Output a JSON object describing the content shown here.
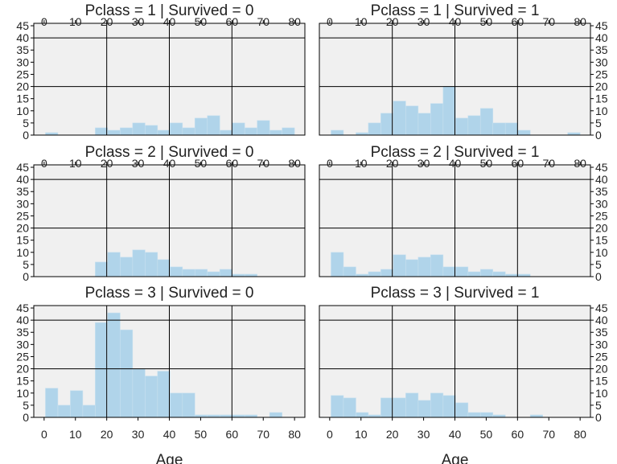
{
  "chart_data": [
    {
      "type": "histogram",
      "title": "Pclass = 1 | Survived = 0",
      "color": "#b0d4ea",
      "xlim": [
        -3.3,
        83.3
      ],
      "ylim": [
        0,
        46
      ],
      "xticks": [
        0,
        10,
        20,
        30,
        40,
        50,
        60,
        70,
        80
      ],
      "yticks": [
        0,
        5,
        10,
        15,
        20,
        25,
        30,
        35,
        40,
        45
      ],
      "xgrid": [
        20,
        40,
        60
      ],
      "ygrid": [
        20,
        40
      ],
      "xaxis_side": "top",
      "yaxis_side": "left",
      "bins": [
        0.42,
        4.4,
        8.38,
        12.35,
        16.33,
        20.31,
        24.29,
        28.27,
        32.25,
        36.23,
        40.21,
        44.19,
        48.16,
        52.14,
        56.12,
        60.1,
        64.08,
        68.06,
        72.04,
        76.02,
        80.0
      ],
      "values": [
        1,
        0,
        0,
        0,
        3,
        2,
        3,
        5,
        4,
        2,
        5,
        3,
        7,
        8,
        2,
        5,
        3,
        6,
        2,
        3
      ]
    },
    {
      "type": "histogram",
      "title": "Pclass = 1 | Survived = 1",
      "color": "#b0d4ea",
      "xlim": [
        -3.3,
        83.3
      ],
      "ylim": [
        0,
        46
      ],
      "xticks": [
        0,
        10,
        20,
        30,
        40,
        50,
        60,
        70,
        80
      ],
      "yticks": [
        0,
        5,
        10,
        15,
        20,
        25,
        30,
        35,
        40,
        45
      ],
      "xgrid": [
        20,
        40,
        60
      ],
      "ygrid": [
        20,
        40
      ],
      "xaxis_side": "top",
      "yaxis_side": "right",
      "bins": [
        0.42,
        4.4,
        8.38,
        12.35,
        16.33,
        20.31,
        24.29,
        28.27,
        32.25,
        36.23,
        40.21,
        44.19,
        48.16,
        52.14,
        56.12,
        60.1,
        64.08,
        68.06,
        72.04,
        76.02,
        80.0
      ],
      "values": [
        2,
        0,
        1,
        5,
        9,
        14,
        12,
        9,
        13,
        20,
        7,
        8,
        11,
        5,
        5,
        2,
        0,
        0,
        0,
        1
      ]
    },
    {
      "type": "histogram",
      "title": "Pclass = 2 | Survived = 0",
      "color": "#b0d4ea",
      "xlim": [
        -3.3,
        83.3
      ],
      "ylim": [
        0,
        46
      ],
      "xticks": [
        0,
        10,
        20,
        30,
        40,
        50,
        60,
        70,
        80
      ],
      "yticks": [
        0,
        5,
        10,
        15,
        20,
        25,
        30,
        35,
        40,
        45
      ],
      "xgrid": [
        20,
        40,
        60
      ],
      "ygrid": [
        20,
        40
      ],
      "xaxis_side": "top",
      "yaxis_side": "left",
      "bins": [
        0.42,
        4.4,
        8.38,
        12.35,
        16.33,
        20.31,
        24.29,
        28.27,
        32.25,
        36.23,
        40.21,
        44.19,
        48.16,
        52.14,
        56.12,
        60.1,
        64.08,
        68.06,
        72.04,
        76.02,
        80.0
      ],
      "values": [
        0,
        0,
        0,
        0,
        6,
        10,
        8,
        11,
        10,
        7,
        4,
        3,
        3,
        2,
        3,
        1,
        1,
        0,
        0,
        0
      ]
    },
    {
      "type": "histogram",
      "title": "Pclass = 2 | Survived = 1",
      "color": "#b0d4ea",
      "xlim": [
        -3.3,
        83.3
      ],
      "ylim": [
        0,
        46
      ],
      "xticks": [
        0,
        10,
        20,
        30,
        40,
        50,
        60,
        70,
        80
      ],
      "yticks": [
        0,
        5,
        10,
        15,
        20,
        25,
        30,
        35,
        40,
        45
      ],
      "xgrid": [
        20,
        40,
        60
      ],
      "ygrid": [
        20,
        40
      ],
      "xaxis_side": "top",
      "yaxis_side": "right",
      "bins": [
        0.42,
        4.4,
        8.38,
        12.35,
        16.33,
        20.31,
        24.29,
        28.27,
        32.25,
        36.23,
        40.21,
        44.19,
        48.16,
        52.14,
        56.12,
        60.1,
        64.08,
        68.06,
        72.04,
        76.02,
        80.0
      ],
      "values": [
        10,
        4,
        1,
        2,
        3,
        9,
        7,
        8,
        9,
        4,
        4,
        2,
        3,
        2,
        1,
        1,
        0,
        0,
        0,
        0
      ]
    },
    {
      "type": "histogram",
      "title": "Pclass = 3 | Survived = 0",
      "xlabel": "Age",
      "color": "#b0d4ea",
      "xlim": [
        -3.3,
        83.3
      ],
      "ylim": [
        0,
        46
      ],
      "xticks": [
        0,
        10,
        20,
        30,
        40,
        50,
        60,
        70,
        80
      ],
      "yticks": [
        0,
        5,
        10,
        15,
        20,
        25,
        30,
        35,
        40,
        45
      ],
      "xgrid": [
        20,
        40,
        60
      ],
      "ygrid": [
        20,
        40
      ],
      "xaxis_side": "bottom",
      "yaxis_side": "left",
      "bins": [
        0.42,
        4.4,
        8.38,
        12.35,
        16.33,
        20.31,
        24.29,
        28.27,
        32.25,
        36.23,
        40.21,
        44.19,
        48.16,
        52.14,
        56.12,
        60.1,
        64.08,
        68.06,
        72.04,
        76.02,
        80.0
      ],
      "values": [
        12,
        5,
        11,
        5,
        39,
        43,
        36,
        20,
        17,
        19,
        10,
        10,
        1,
        1,
        1,
        1,
        1,
        0,
        2,
        0
      ]
    },
    {
      "type": "histogram",
      "title": "Pclass = 3 | Survived = 1",
      "xlabel": "Age",
      "color": "#b0d4ea",
      "xlim": [
        -3.3,
        83.3
      ],
      "ylim": [
        0,
        46
      ],
      "xticks": [
        0,
        10,
        20,
        30,
        40,
        50,
        60,
        70,
        80
      ],
      "yticks": [
        0,
        5,
        10,
        15,
        20,
        25,
        30,
        35,
        40,
        45
      ],
      "xgrid": [
        20,
        40,
        60
      ],
      "ygrid": [
        20,
        40
      ],
      "xaxis_side": "bottom",
      "yaxis_side": "right",
      "bins": [
        0.42,
        4.4,
        8.38,
        12.35,
        16.33,
        20.31,
        24.29,
        28.27,
        32.25,
        36.23,
        40.21,
        44.19,
        48.16,
        52.14,
        56.12,
        60.1,
        64.08,
        68.06,
        72.04,
        76.02,
        80.0
      ],
      "values": [
        9,
        8,
        2,
        1,
        8,
        8,
        10,
        7,
        10,
        9,
        6,
        2,
        2,
        1,
        0,
        0,
        1,
        0,
        0,
        0
      ]
    }
  ]
}
